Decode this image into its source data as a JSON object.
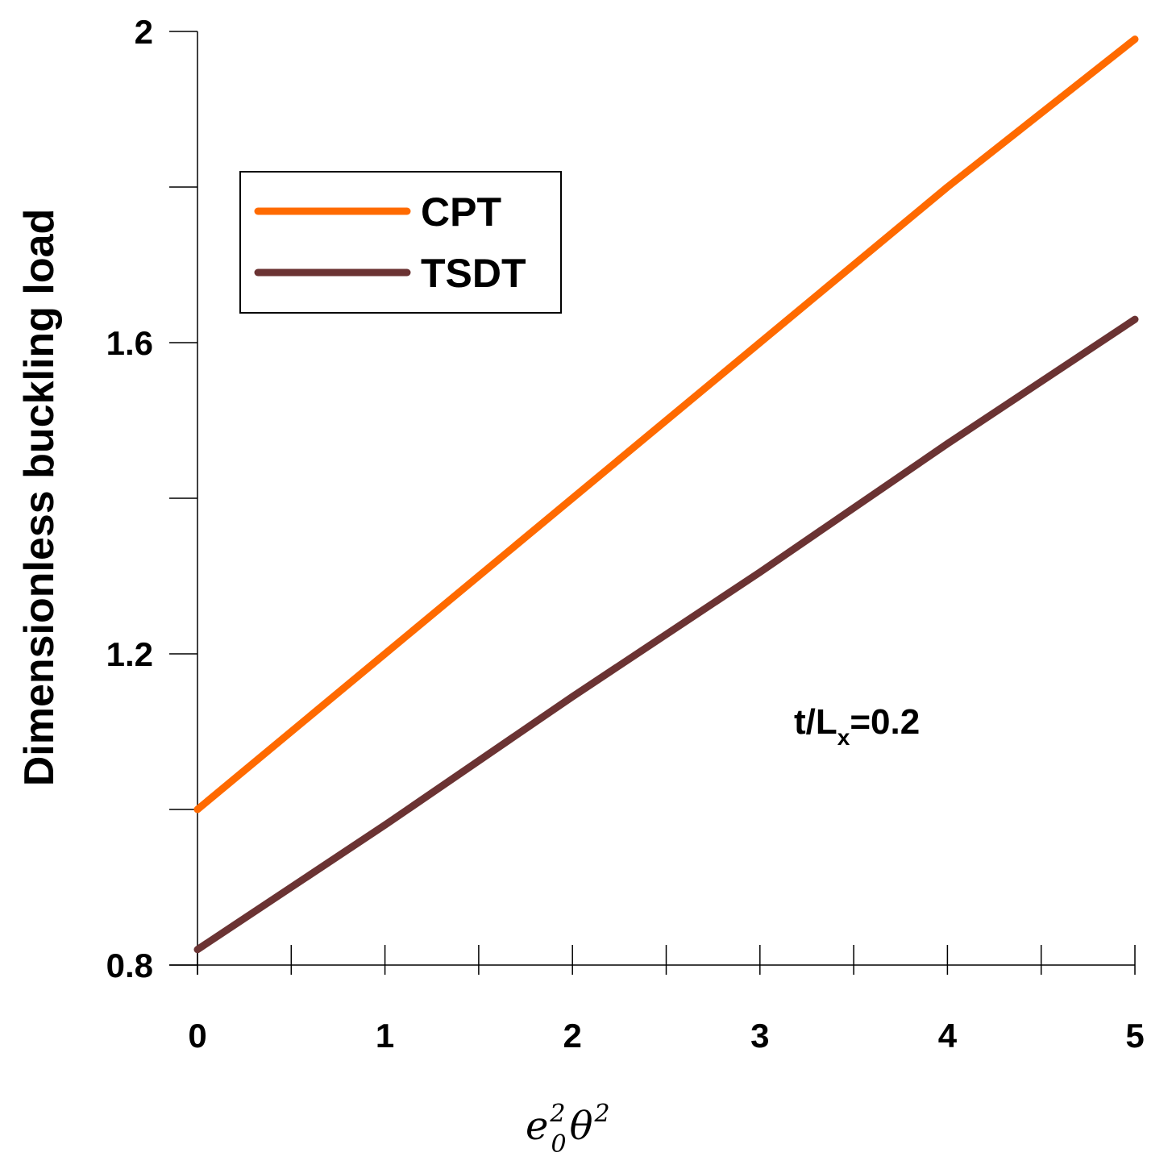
{
  "chart_data": {
    "type": "line",
    "xlabel": {
      "base": "e",
      "sub": "0",
      "sup": "2",
      "base2": "θ",
      "sup2": "2"
    },
    "ylabel": "Dimensionless buckling load",
    "xlim": [
      0,
      5
    ],
    "ylim": [
      0.8,
      2.0
    ],
    "x_ticks": [
      0,
      1,
      2,
      3,
      4,
      5
    ],
    "x_tick_labels": [
      "0",
      "1",
      "2",
      "3",
      "4",
      "5"
    ],
    "x_minor_step": 0.5,
    "y_ticks": [
      0.8,
      1.2,
      1.6,
      2.0
    ],
    "y_tick_labels": [
      "0.8",
      "1.2",
      "1.6",
      "2"
    ],
    "y_minor_step": 0.2,
    "grid": false,
    "legend": "upper-left",
    "series": [
      {
        "name": "CPT",
        "color": "#ff6a00",
        "x": [
          0,
          1,
          2,
          3,
          4,
          5
        ],
        "values": [
          1.0,
          1.2,
          1.4,
          1.6,
          1.8,
          1.99
        ]
      },
      {
        "name": "TSDT",
        "color": "#6b3333",
        "x": [
          0,
          1,
          2,
          3,
          4,
          5
        ],
        "values": [
          0.82,
          0.98,
          1.145,
          1.305,
          1.47,
          1.63
        ]
      }
    ],
    "annotation": {
      "main": "t/L",
      "sub": "x",
      "suffix": "=0.2"
    }
  }
}
